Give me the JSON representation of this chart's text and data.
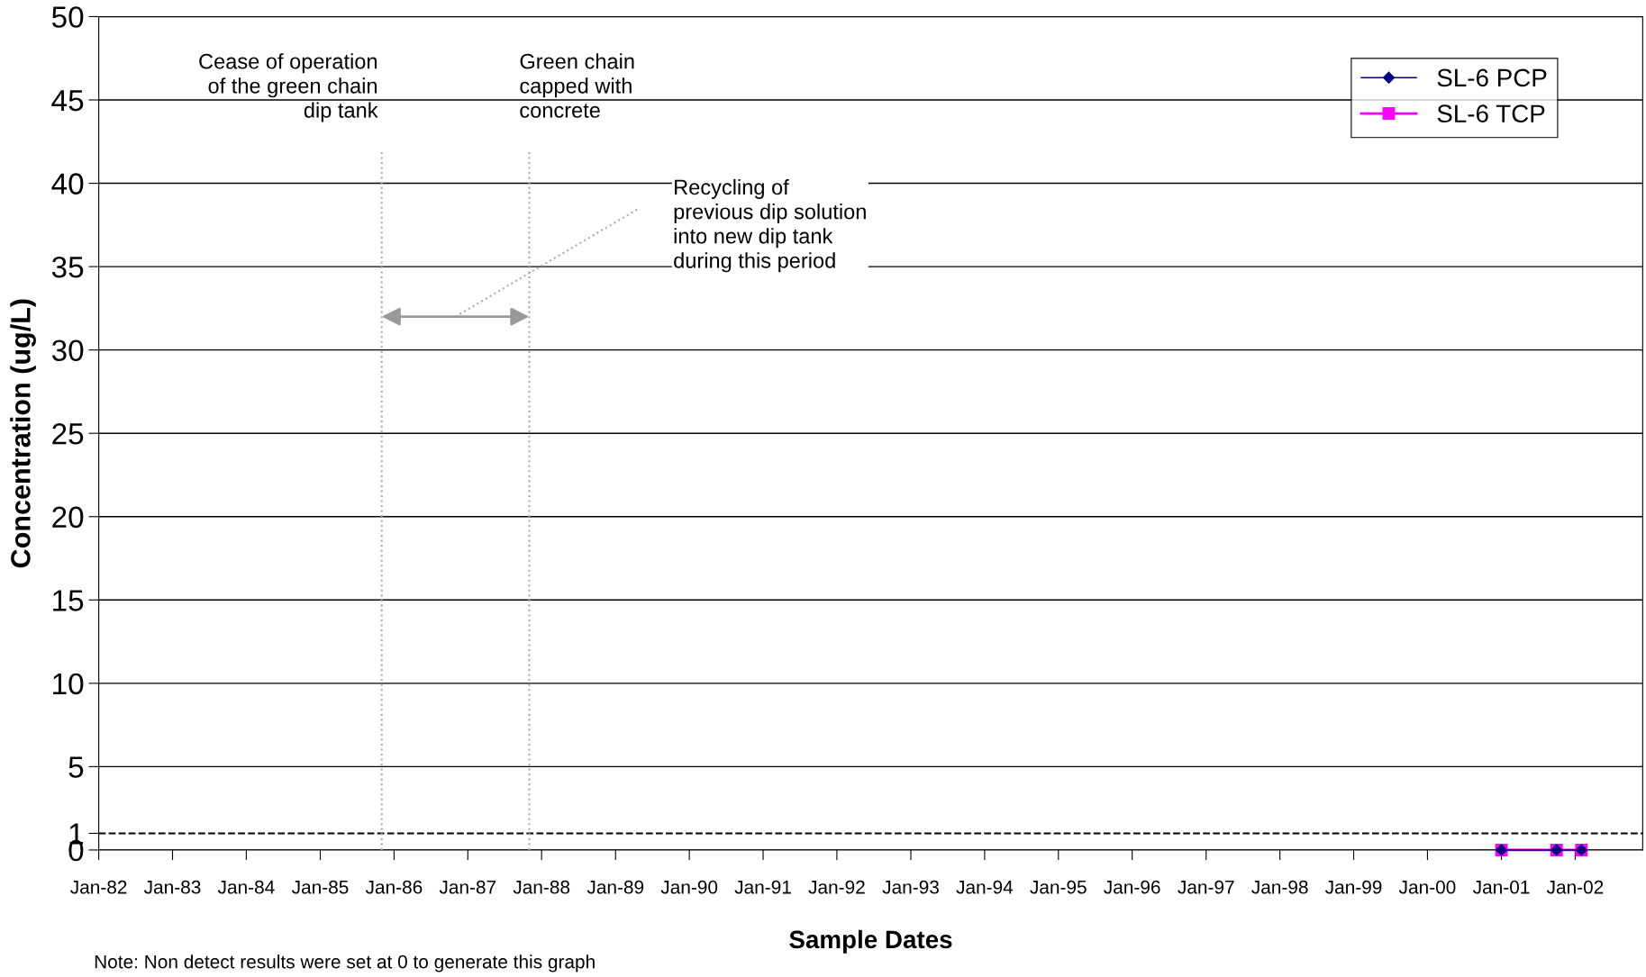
{
  "chart_data": {
    "type": "line",
    "xlabel": "Sample Dates",
    "ylabel": "Concentration (ug/L)",
    "x": [
      "2001-01",
      "2001-10",
      "2002-02"
    ],
    "series": [
      {
        "name": "SL-6 PCP",
        "color": "#000080",
        "marker": "diamond",
        "values": [
          0,
          0,
          0
        ]
      },
      {
        "name": "SL-6 TCP",
        "color": "#ff00ff",
        "marker": "square",
        "values": [
          0,
          0,
          0
        ]
      }
    ],
    "xlim": [
      "1982-01",
      "2002-12"
    ],
    "xticks": [
      {
        "value": "1982-01",
        "label": "Jan-82"
      },
      {
        "value": "1983-01",
        "label": "Jan-83"
      },
      {
        "value": "1984-01",
        "label": "Jan-84"
      },
      {
        "value": "1985-01",
        "label": "Jan-85"
      },
      {
        "value": "1986-01",
        "label": "Jan-86"
      },
      {
        "value": "1987-01",
        "label": "Jan-87"
      },
      {
        "value": "1988-01",
        "label": "Jan-88"
      },
      {
        "value": "1989-01",
        "label": "Jan-89"
      },
      {
        "value": "1990-01",
        "label": "Jan-90"
      },
      {
        "value": "1991-01",
        "label": "Jan-91"
      },
      {
        "value": "1992-01",
        "label": "Jan-92"
      },
      {
        "value": "1993-01",
        "label": "Jan-93"
      },
      {
        "value": "1994-01",
        "label": "Jan-94"
      },
      {
        "value": "1995-01",
        "label": "Jan-95"
      },
      {
        "value": "1996-01",
        "label": "Jan-96"
      },
      {
        "value": "1997-01",
        "label": "Jan-97"
      },
      {
        "value": "1998-01",
        "label": "Jan-98"
      },
      {
        "value": "1999-01",
        "label": "Jan-99"
      },
      {
        "value": "2000-01",
        "label": "Jan-00"
      },
      {
        "value": "2001-01",
        "label": "Jan-01"
      },
      {
        "value": "2002-01",
        "label": "Jan-02"
      }
    ],
    "ylim": [
      0,
      50
    ],
    "yticks": [
      0,
      1,
      5,
      10,
      15,
      20,
      25,
      30,
      35,
      40,
      45,
      50
    ],
    "grid": "y",
    "legend": "top right",
    "line_style": "solid",
    "ref_lines": [
      {
        "axis": "y",
        "value": 1,
        "color": "#000000",
        "line_style": "dashed"
      },
      {
        "axis": "x",
        "value": "1985-11",
        "label": "Cease of operation\nof the green chain\ndip tank",
        "color": "#aaaaaa",
        "line_style": "dotted"
      },
      {
        "axis": "x",
        "value": "1987-11",
        "label": "Green chain\ncapped with\nconcrete",
        "color": "#aaaaaa",
        "line_style": "dotted"
      }
    ],
    "annotations": [
      "Recycling of\nprevious dip solution\ninto new dip tank\nduring this period",
      "Note: Non detect results were set at 0 to generate this graph"
    ]
  }
}
